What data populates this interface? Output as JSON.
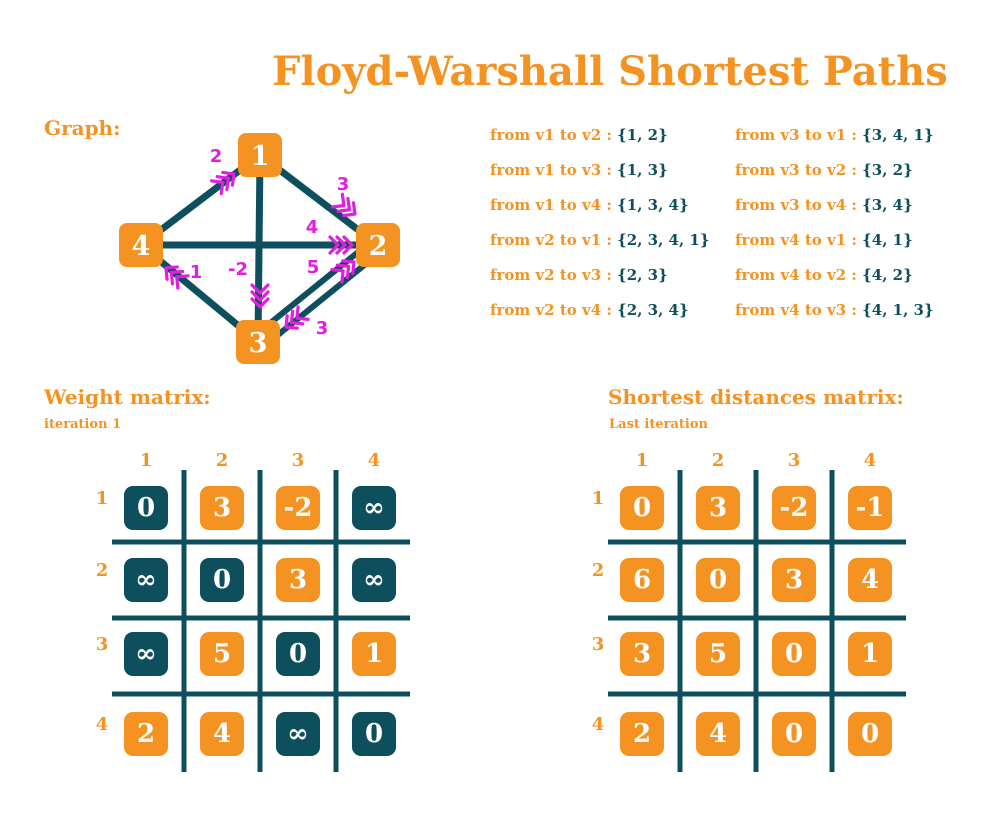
{
  "title": "Floyd-Warshall Shortest Paths",
  "graph": {
    "label": "Graph:",
    "nodes": [
      "1",
      "2",
      "3",
      "4"
    ],
    "edges": [
      {
        "from": "4",
        "to": "1",
        "weight": "2"
      },
      {
        "from": "1",
        "to": "2",
        "weight": "3"
      },
      {
        "from": "4",
        "to": "2",
        "weight": "4"
      },
      {
        "from": "3",
        "to": "2",
        "weight": "5"
      },
      {
        "from": "1",
        "to": "3",
        "weight": "-2"
      },
      {
        "from": "3",
        "to": "4",
        "weight": "1"
      },
      {
        "from": "2",
        "to": "3",
        "weight": "3"
      }
    ]
  },
  "paths": {
    "left": [
      {
        "label": "from v1 to v2 : ",
        "value": "{1, 2}"
      },
      {
        "label": "from v1 to v3 : ",
        "value": "{1, 3}"
      },
      {
        "label": "from v1 to v4 : ",
        "value": "{1, 3, 4}"
      },
      {
        "label": "from v2 to v1 : ",
        "value": "{2, 3, 4, 1}"
      },
      {
        "label": "from v2 to v3 : ",
        "value": "{2, 3}"
      },
      {
        "label": "from v2 to v4 : ",
        "value": "{2, 3, 4}"
      }
    ],
    "right": [
      {
        "label": "from v3 to v1 : ",
        "value": "{3, 4, 1}"
      },
      {
        "label": "from v3 to v2 : ",
        "value": "{3, 2}"
      },
      {
        "label": "from v3 to v4 : ",
        "value": "{3, 4}"
      },
      {
        "label": "from v4 to v1 : ",
        "value": "{4, 1}"
      },
      {
        "label": "from v4 to v2 : ",
        "value": "{4, 2}"
      },
      {
        "label": "from v4 to v3 : ",
        "value": "{4, 1, 3}"
      }
    ]
  },
  "weight_matrix": {
    "title": "Weight matrix:",
    "subtitle": "iteration 1",
    "col_labels": [
      "1",
      "2",
      "3",
      "4"
    ],
    "row_labels": [
      "1",
      "2",
      "3",
      "4"
    ],
    "cells": [
      [
        {
          "v": "0",
          "c": "teal"
        },
        {
          "v": "3",
          "c": "orange"
        },
        {
          "v": "-2",
          "c": "orange"
        },
        {
          "v": "∞",
          "c": "teal"
        }
      ],
      [
        {
          "v": "∞",
          "c": "teal"
        },
        {
          "v": "0",
          "c": "teal"
        },
        {
          "v": "3",
          "c": "orange"
        },
        {
          "v": "∞",
          "c": "teal"
        }
      ],
      [
        {
          "v": "∞",
          "c": "teal"
        },
        {
          "v": "5",
          "c": "orange"
        },
        {
          "v": "0",
          "c": "teal"
        },
        {
          "v": "1",
          "c": "orange"
        }
      ],
      [
        {
          "v": "2",
          "c": "orange"
        },
        {
          "v": "4",
          "c": "orange"
        },
        {
          "v": "∞",
          "c": "teal"
        },
        {
          "v": "0",
          "c": "teal"
        }
      ]
    ]
  },
  "shortest_matrix": {
    "title": "Shortest distances matrix:",
    "subtitle": "Last iteration",
    "col_labels": [
      "1",
      "2",
      "3",
      "4"
    ],
    "row_labels": [
      "1",
      "2",
      "3",
      "4"
    ],
    "cells": [
      [
        {
          "v": "0",
          "c": "orange"
        },
        {
          "v": "3",
          "c": "orange"
        },
        {
          "v": "-2",
          "c": "orange"
        },
        {
          "v": "-1",
          "c": "orange"
        }
      ],
      [
        {
          "v": "6",
          "c": "orange"
        },
        {
          "v": "0",
          "c": "orange"
        },
        {
          "v": "3",
          "c": "orange"
        },
        {
          "v": "4",
          "c": "orange"
        }
      ],
      [
        {
          "v": "3",
          "c": "orange"
        },
        {
          "v": "5",
          "c": "orange"
        },
        {
          "v": "0",
          "c": "orange"
        },
        {
          "v": "1",
          "c": "orange"
        }
      ],
      [
        {
          "v": "2",
          "c": "orange"
        },
        {
          "v": "4",
          "c": "orange"
        },
        {
          "v": "0",
          "c": "orange"
        },
        {
          "v": "0",
          "c": "orange"
        }
      ]
    ]
  },
  "colors": {
    "orange": "#f59322",
    "teal": "#0e4f5e",
    "magenta": "#e21ee2"
  }
}
